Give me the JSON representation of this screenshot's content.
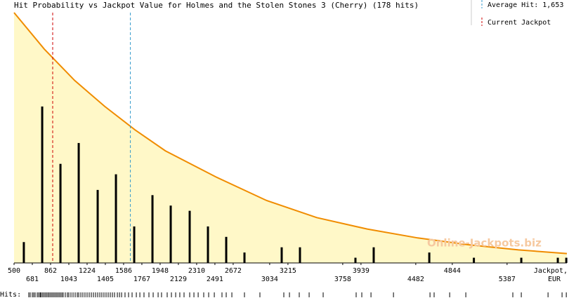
{
  "chart_data": {
    "type": "bar",
    "title": "Hit Probability vs Jackpot Value for Holmes and the Stolen Stones 3 (Cherry) (178 hits)",
    "x_label": "Jackpot,",
    "x_unit": "EUR",
    "rug_label": "Hits:",
    "watermark": "Online-Jackpots.biz",
    "xlim": [
      500,
      5980
    ],
    "ylim": [
      0,
      48
    ],
    "xticks": [
      500,
      681,
      862,
      1043,
      1224,
      1405,
      1586,
      1767,
      1948,
      2129,
      2310,
      2491,
      2672,
      3034,
      3215,
      3758,
      3939,
      4482,
      4844,
      5387
    ],
    "bar_color": "#000000",
    "x": [
      597,
      779,
      960,
      1141,
      1329,
      1510,
      1691,
      1872,
      2053,
      2241,
      2422,
      2603,
      2784,
      3153,
      3334,
      3884,
      4065,
      4616,
      5058,
      5528,
      5890,
      5974
    ],
    "values": [
      4,
      30,
      19,
      23,
      14,
      17,
      7,
      13,
      11,
      10,
      7,
      5,
      2,
      3,
      3,
      1,
      3,
      2,
      1,
      1,
      1,
      1
    ],
    "curve": {
      "color": "#f08c00",
      "fill": "#fff8c8",
      "x": [
        500,
        800,
        1100,
        1400,
        1700,
        2000,
        2500,
        3000,
        3500,
        4000,
        4500,
        5000,
        5500,
        5980
      ],
      "values": [
        48,
        41,
        35,
        30,
        25.5,
        21.5,
        16.5,
        12,
        8.7,
        6.5,
        4.8,
        3.5,
        2.5,
        1.8
      ]
    },
    "average_hit": {
      "value": 1653,
      "label": "Average Hit: 1,653",
      "color": "#3399cc"
    },
    "current_jackpot": {
      "value": 883,
      "label": "Current Jackpot",
      "color": "#cc0000"
    },
    "hits": [
      646,
      660,
      681,
      695,
      709,
      730,
      744,
      758,
      765,
      779,
      793,
      807,
      821,
      835,
      848,
      862,
      876,
      890,
      904,
      918,
      932,
      946,
      960,
      974,
      987,
      1008,
      1029,
      1043,
      1064,
      1085,
      1106,
      1127,
      1141,
      1162,
      1182,
      1203,
      1224,
      1245,
      1266,
      1287,
      1308,
      1329,
      1350,
      1370,
      1391,
      1412,
      1433,
      1454,
      1475,
      1496,
      1524,
      1545,
      1566,
      1600,
      1635,
      1670,
      1712,
      1747,
      1788,
      1837,
      1879,
      1928,
      1962,
      2018,
      2060,
      2102,
      2143,
      2185,
      2241,
      2283,
      2325,
      2380,
      2429,
      2485,
      2561,
      2603,
      2659,
      2784,
      2937,
      3174,
      3230,
      3327,
      3425,
      3564,
      3891,
      3947,
      4038,
      4261,
      4623,
      4664,
      4818,
      4978,
      5444,
      5528,
      5793,
      5932,
      5974
    ]
  }
}
